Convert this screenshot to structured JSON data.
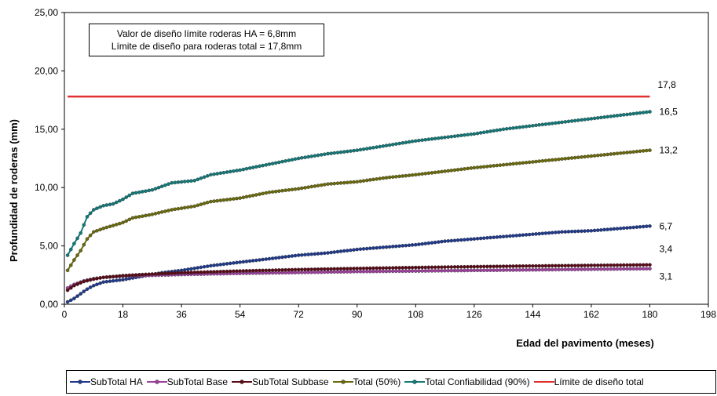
{
  "chart_data": {
    "type": "line",
    "xlabel": "Edad del pavimento (meses)",
    "ylabel": "Profundidad de roderas (mm)",
    "xlim": [
      0,
      198
    ],
    "ylim": [
      0,
      25
    ],
    "x_ticks": [
      "0",
      "18",
      "36",
      "54",
      "72",
      "90",
      "108",
      "126",
      "144",
      "162",
      "180",
      "198"
    ],
    "y_ticks": [
      "0,00",
      "5,00",
      "10,00",
      "15,00",
      "20,00",
      "25,00"
    ],
    "grid": false,
    "legend_position": "bottom",
    "annotation_lines": [
      "Valor de diseño límite roderas HA = 6,8mm",
      "Límite de diseño para roderas total = 17,8mm"
    ],
    "series": [
      {
        "name": "SubTotal HA",
        "color": "#1f3a8f",
        "marker": true,
        "end_label": "6,7",
        "points": [
          [
            1,
            0.2
          ],
          [
            3,
            0.5
          ],
          [
            5,
            0.9
          ],
          [
            7,
            1.3
          ],
          [
            9,
            1.6
          ],
          [
            12,
            1.9
          ],
          [
            15,
            2.0
          ],
          [
            18,
            2.1
          ],
          [
            24,
            2.4
          ],
          [
            30,
            2.7
          ],
          [
            36,
            2.9
          ],
          [
            45,
            3.3
          ],
          [
            54,
            3.6
          ],
          [
            63,
            3.9
          ],
          [
            72,
            4.2
          ],
          [
            81,
            4.4
          ],
          [
            90,
            4.7
          ],
          [
            99,
            4.9
          ],
          [
            108,
            5.1
          ],
          [
            117,
            5.4
          ],
          [
            126,
            5.6
          ],
          [
            135,
            5.8
          ],
          [
            144,
            6.0
          ],
          [
            153,
            6.2
          ],
          [
            162,
            6.3
          ],
          [
            171,
            6.5
          ],
          [
            180,
            6.7
          ]
        ]
      },
      {
        "name": "SubTotal Base",
        "color": "#a040a0",
        "marker": true,
        "end_label": "3,1",
        "points": [
          [
            1,
            1.4
          ],
          [
            3,
            1.7
          ],
          [
            6,
            2.0
          ],
          [
            9,
            2.2
          ],
          [
            12,
            2.3
          ],
          [
            18,
            2.4
          ],
          [
            24,
            2.45
          ],
          [
            36,
            2.55
          ],
          [
            54,
            2.65
          ],
          [
            72,
            2.72
          ],
          [
            90,
            2.8
          ],
          [
            108,
            2.85
          ],
          [
            126,
            2.9
          ],
          [
            144,
            2.95
          ],
          [
            162,
            3.0
          ],
          [
            180,
            3.05
          ]
        ]
      },
      {
        "name": "SubTotal Subbase",
        "color": "#5a0a16",
        "marker": true,
        "end_label": "3,4",
        "points": [
          [
            1,
            1.2
          ],
          [
            3,
            1.6
          ],
          [
            6,
            1.95
          ],
          [
            9,
            2.15
          ],
          [
            12,
            2.3
          ],
          [
            18,
            2.45
          ],
          [
            24,
            2.55
          ],
          [
            36,
            2.7
          ],
          [
            54,
            2.85
          ],
          [
            72,
            2.97
          ],
          [
            90,
            3.07
          ],
          [
            108,
            3.15
          ],
          [
            126,
            3.22
          ],
          [
            144,
            3.28
          ],
          [
            162,
            3.33
          ],
          [
            180,
            3.38
          ]
        ]
      },
      {
        "name": "Total (50%)",
        "color": "#6b6b0a",
        "marker": true,
        "end_label": "13,2",
        "points": [
          [
            1,
            2.9
          ],
          [
            3,
            3.8
          ],
          [
            5,
            4.6
          ],
          [
            7,
            5.6
          ],
          [
            9,
            6.2
          ],
          [
            12,
            6.5
          ],
          [
            15,
            6.75
          ],
          [
            18,
            7.0
          ],
          [
            21,
            7.4
          ],
          [
            27,
            7.7
          ],
          [
            33,
            8.1
          ],
          [
            40,
            8.4
          ],
          [
            45,
            8.8
          ],
          [
            54,
            9.1
          ],
          [
            63,
            9.6
          ],
          [
            72,
            9.9
          ],
          [
            81,
            10.3
          ],
          [
            90,
            10.5
          ],
          [
            99,
            10.85
          ],
          [
            108,
            11.1
          ],
          [
            117,
            11.4
          ],
          [
            126,
            11.7
          ],
          [
            135,
            11.95
          ],
          [
            144,
            12.2
          ],
          [
            153,
            12.45
          ],
          [
            162,
            12.7
          ],
          [
            171,
            12.95
          ],
          [
            180,
            13.2
          ]
        ]
      },
      {
        "name": "Total Confiabilidad (90%)",
        "color": "#117a7a",
        "marker": true,
        "end_label": "16,5",
        "points": [
          [
            1,
            4.2
          ],
          [
            3,
            5.2
          ],
          [
            5,
            6.1
          ],
          [
            7,
            7.5
          ],
          [
            9,
            8.1
          ],
          [
            12,
            8.45
          ],
          [
            15,
            8.6
          ],
          [
            18,
            9.0
          ],
          [
            21,
            9.5
          ],
          [
            27,
            9.8
          ],
          [
            33,
            10.4
          ],
          [
            40,
            10.6
          ],
          [
            45,
            11.1
          ],
          [
            54,
            11.5
          ],
          [
            63,
            12.0
          ],
          [
            72,
            12.5
          ],
          [
            81,
            12.9
          ],
          [
            90,
            13.2
          ],
          [
            99,
            13.6
          ],
          [
            108,
            14.0
          ],
          [
            117,
            14.3
          ],
          [
            126,
            14.6
          ],
          [
            135,
            15.0
          ],
          [
            144,
            15.3
          ],
          [
            153,
            15.6
          ],
          [
            162,
            15.9
          ],
          [
            171,
            16.2
          ],
          [
            180,
            16.5
          ]
        ]
      },
      {
        "name": "Límite de diseño total",
        "color": "#e03030",
        "marker": false,
        "end_label": "17,8",
        "points": [
          [
            1,
            17.8
          ],
          [
            180,
            17.8
          ]
        ]
      }
    ]
  }
}
